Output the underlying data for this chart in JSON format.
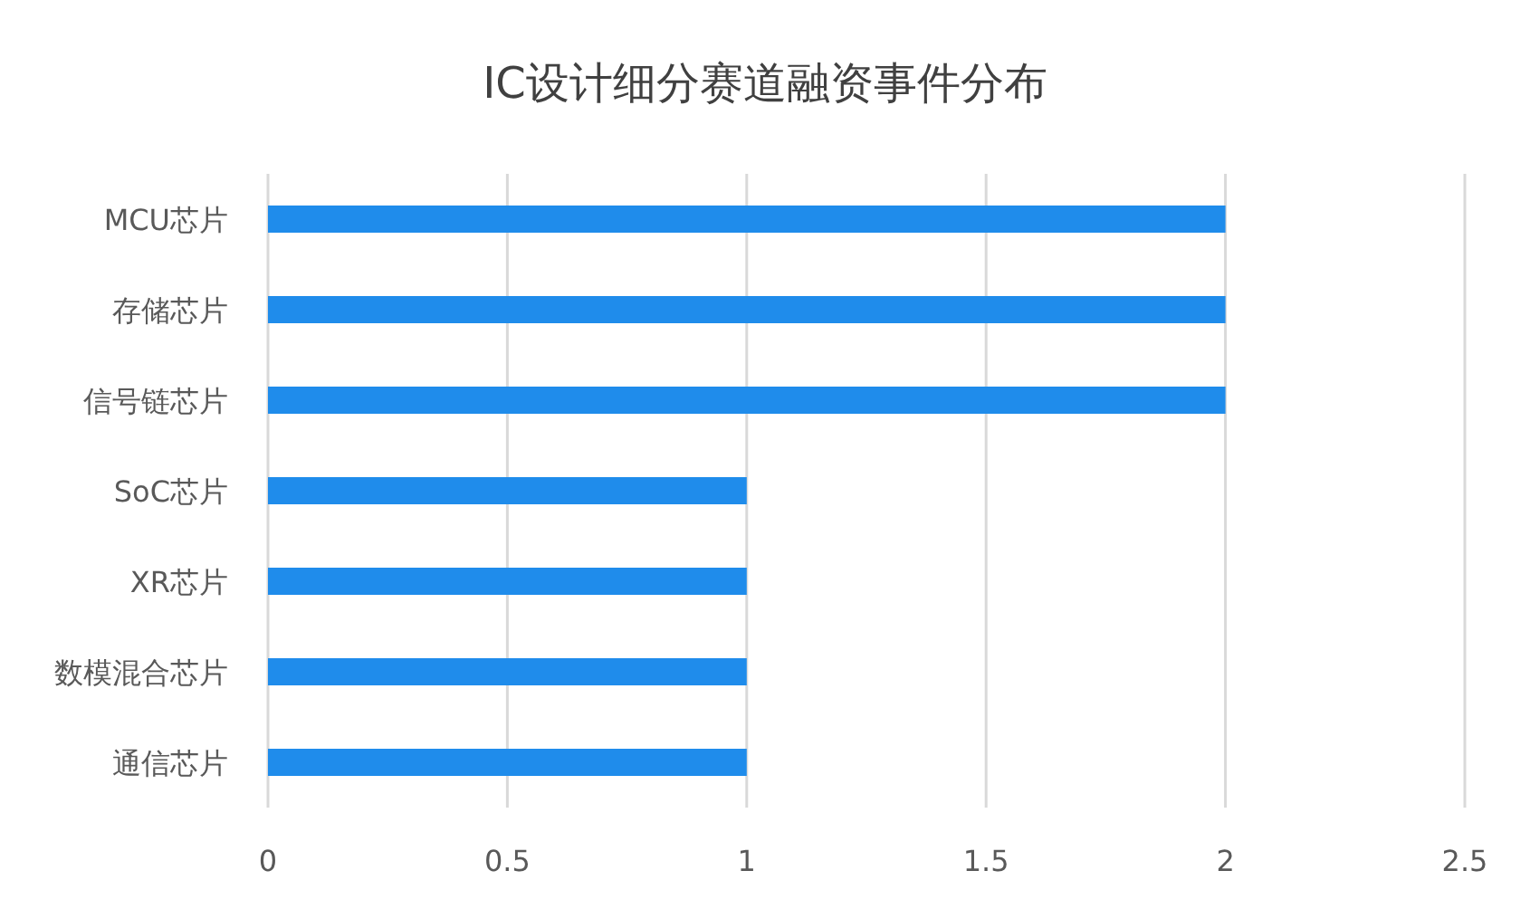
{
  "chart_data": {
    "type": "bar",
    "orientation": "horizontal",
    "title": "IC设计细分赛道融资事件分布",
    "categories": [
      "MCU芯片",
      "存储芯片",
      "信号链芯片",
      "SoC芯片",
      "XR芯片",
      "数模混合芯片",
      "通信芯片"
    ],
    "values": [
      2,
      2,
      2,
      1,
      1,
      1,
      1
    ],
    "color": "#1f8ceb",
    "xlim": [
      0,
      2.5
    ],
    "xticks": [
      0,
      0.5,
      1,
      1.5,
      2,
      2.5
    ],
    "grid": "x"
  }
}
